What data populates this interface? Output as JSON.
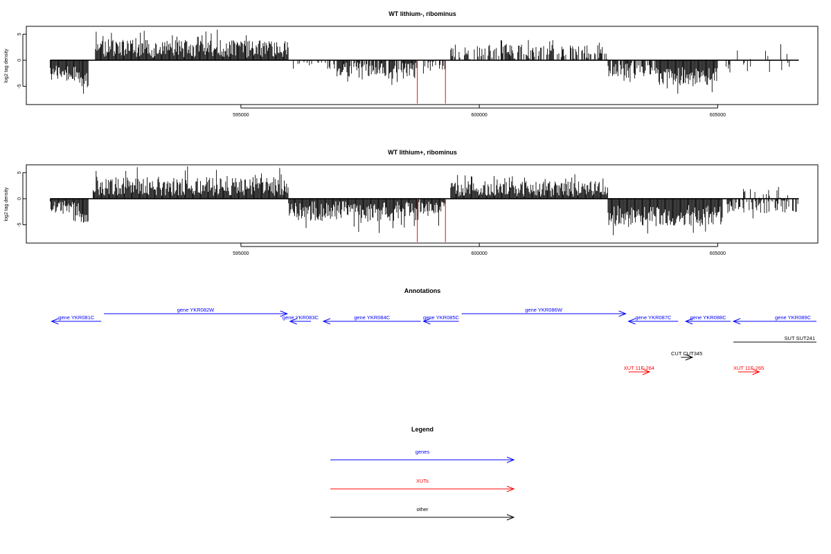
{
  "chart_data": [
    {
      "type": "bar",
      "title": "WT lithium-, ribominus",
      "ylabel": "log2 tag density",
      "xlim": [
        590500,
        607100
      ],
      "ylim": [
        -8.5,
        6.5
      ],
      "x_ticks": [
        595000,
        600000,
        605000
      ],
      "y_ticks": [
        5,
        0,
        -5
      ],
      "x_tick_labels": [
        "595000",
        "600000",
        "605000"
      ],
      "y_tick_labels": [
        "5",
        "0",
        "-5"
      ],
      "baseline_range": [
        591000,
        606700
      ],
      "series": [
        {
          "segments": [
            {
              "x0": 591000,
              "x1": 591620,
              "sign": -1,
              "mean": 2.6,
              "spread": 1.6,
              "density": 1.0
            },
            {
              "x0": 591620,
              "x1": 591800,
              "sign": -1,
              "mean": 3.8,
              "spread": 1.4,
              "density": 1.0
            },
            {
              "x0": 591950,
              "x1": 596000,
              "sign": 1,
              "mean": 2.2,
              "spread": 1.7,
              "density": 1.0
            },
            {
              "x0": 596100,
              "x1": 597000,
              "sign": -1,
              "mean": 1.0,
              "spread": 1.0,
              "density": 0.35
            },
            {
              "x0": 597000,
              "x1": 598700,
              "sign": -1,
              "mean": 2.0,
              "spread": 1.6,
              "density": 0.75
            },
            {
              "x0": 598700,
              "x1": 599300,
              "sign": -1,
              "mean": 1.2,
              "spread": 1.0,
              "density": 0.4
            },
            {
              "x0": 599400,
              "x1": 602700,
              "sign": 1,
              "mean": 1.6,
              "spread": 1.4,
              "density": 0.55
            },
            {
              "x0": 602700,
              "x1": 603700,
              "sign": -1,
              "mean": 2.0,
              "spread": 1.5,
              "density": 0.75
            },
            {
              "x0": 603700,
              "x1": 605000,
              "sign": -1,
              "mean": 3.0,
              "spread": 1.8,
              "density": 1.0
            },
            {
              "x0": 605000,
              "x1": 606700,
              "sign": -1,
              "mean": 1.2,
              "spread": 1.2,
              "density": 0.2
            },
            {
              "x0": 605300,
              "x1": 606500,
              "sign": 1,
              "mean": 1.2,
              "spread": 1.2,
              "density": 0.1
            }
          ]
        }
      ],
      "highlight_lines": [
        {
          "x": 598700,
          "y": -8.3,
          "color": "#ff0000"
        },
        {
          "x": 599290,
          "y": -8.3,
          "color": "#ff0000"
        }
      ]
    },
    {
      "type": "bar",
      "title": "WT lithium+, ribominus",
      "ylabel": "log2 tag density",
      "xlim": [
        590500,
        607100
      ],
      "ylim": [
        -8.5,
        6.5
      ],
      "x_ticks": [
        595000,
        600000,
        605000
      ],
      "y_ticks": [
        5,
        0,
        -5
      ],
      "x_tick_labels": [
        "595000",
        "600000",
        "605000"
      ],
      "y_tick_labels": [
        "5",
        "0",
        "-5"
      ],
      "baseline_range": [
        591000,
        606700
      ],
      "series": [
        {
          "segments": [
            {
              "x0": 591000,
              "x1": 591620,
              "sign": -1,
              "mean": 1.8,
              "spread": 1.4,
              "density": 1.0
            },
            {
              "x0": 591620,
              "x1": 591800,
              "sign": -1,
              "mean": 3.2,
              "spread": 1.4,
              "density": 1.0
            },
            {
              "x0": 591900,
              "x1": 596000,
              "sign": 1,
              "mean": 2.4,
              "spread": 1.8,
              "density": 1.0
            },
            {
              "x0": 596000,
              "x1": 598700,
              "sign": -1,
              "mean": 2.4,
              "spread": 1.9,
              "density": 1.0
            },
            {
              "x0": 598700,
              "x1": 599300,
              "sign": -1,
              "mean": 2.0,
              "spread": 1.5,
              "density": 0.9
            },
            {
              "x0": 599400,
              "x1": 602700,
              "sign": 1,
              "mean": 1.9,
              "spread": 1.5,
              "density": 1.0
            },
            {
              "x0": 602700,
              "x1": 605100,
              "sign": -1,
              "mean": 3.2,
              "spread": 2.0,
              "density": 1.0
            },
            {
              "x0": 605100,
              "x1": 606700,
              "sign": -1,
              "mean": 1.4,
              "spread": 1.4,
              "density": 0.5
            },
            {
              "x0": 605300,
              "x1": 606500,
              "sign": 1,
              "mean": 1.0,
              "spread": 1.0,
              "density": 0.15
            }
          ]
        }
      ],
      "highlight_lines": [
        {
          "x": 598700,
          "y": -8.3,
          "color": "#ff0000"
        },
        {
          "x": 599290,
          "y": -8.3,
          "color": "#ff0000"
        }
      ]
    }
  ],
  "annotations": {
    "title": "Annotations",
    "features": [
      {
        "label": "gene YKR081C",
        "color": "#0000ff",
        "x0": 591000,
        "x1": 592100,
        "strand": "-",
        "track": 1
      },
      {
        "label": "gene YKR082W",
        "color": "#0000ff",
        "x0": 592100,
        "x1": 596000,
        "strand": "+",
        "track": 0
      },
      {
        "label": "gene YKR083C",
        "color": "#0000ff",
        "x0": 596000,
        "x1": 596500,
        "strand": "-",
        "track": 1
      },
      {
        "label": "gene YKR084C",
        "color": "#0000ff",
        "x0": 596700,
        "x1": 598800,
        "strand": "-",
        "track": 1
      },
      {
        "label": "gene YKR085C",
        "color": "#0000ff",
        "x0": 598800,
        "x1": 599600,
        "strand": "-",
        "track": 1
      },
      {
        "label": "gene YKR086W",
        "color": "#0000ff",
        "x0": 599600,
        "x1": 603100,
        "strand": "+",
        "track": 0
      },
      {
        "label": "gene YKR087C",
        "color": "#0000ff",
        "x0": 603100,
        "x1": 604200,
        "strand": "-",
        "track": 1
      },
      {
        "label": "gene YKR088C",
        "color": "#0000ff",
        "x0": 604300,
        "x1": 605300,
        "strand": "-",
        "track": 1
      },
      {
        "label": "gene YKR089C",
        "color": "#0000ff",
        "x0": 605300,
        "x1": 607300,
        "strand": "-",
        "track": 1
      },
      {
        "label": "SUT SUT241",
        "color": "#000000",
        "x0": 605300,
        "x1": 607300,
        "strand": ".",
        "track": 2
      },
      {
        "label": "CUT CUT345",
        "color": "#000000",
        "x0": 604200,
        "x1": 604500,
        "strand": "+",
        "track": 3
      },
      {
        "label": "XUT 11F-264",
        "color": "#ff0000",
        "x0": 603100,
        "x1": 603600,
        "strand": "+",
        "track": 4
      },
      {
        "label": "XUT 11F-265",
        "color": "#ff0000",
        "x0": 605400,
        "x1": 605900,
        "strand": "+",
        "track": 4
      }
    ]
  },
  "legend": {
    "title": "Legend",
    "items": [
      {
        "label": "genes",
        "color": "#0000ff"
      },
      {
        "label": "XUTs",
        "color": "#ff0000"
      },
      {
        "label": "other",
        "color": "#000000"
      }
    ]
  }
}
